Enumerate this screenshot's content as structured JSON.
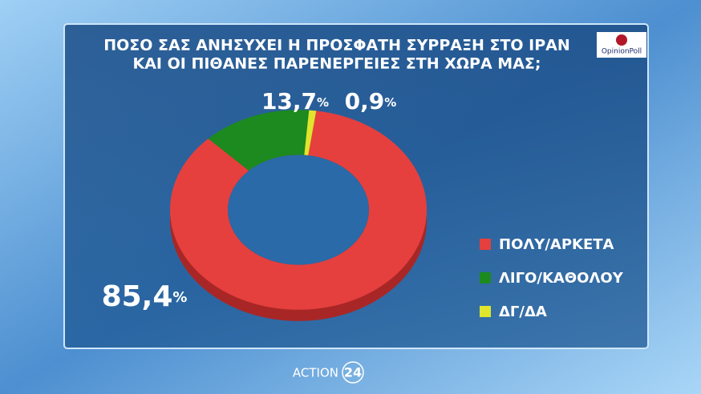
{
  "chart_data": {
    "type": "pie",
    "title": [
      "ΠΟΣΟ ΣΑΣ ΑΝΗΣΥΧΕΙ Η ΠΡΟΣΦΑΤΗ ΣΥΡΡΑΞΗ ΣΤΟ ΙΡΑΝ",
      "ΚΑΙ ΟΙ ΠΙΘΑΝΕΣ ΠΑΡΕΝΕΡΓΕΙΕΣ ΣΤΗ ΧΩΡΑ ΜΑΣ;"
    ],
    "categories": [
      "ΠΟΛΥ/ΑΡΚΕΤΑ",
      "ΛΙΓΟ/ΚΑΘΟΛΟΥ",
      "ΔΓ/ΔΑ"
    ],
    "values": [
      85.4,
      13.7,
      0.9
    ],
    "value_labels": [
      "85,4%",
      "13,7%",
      "0,9%"
    ],
    "colors": [
      "#e5403e",
      "#1c8a1e",
      "#dfe52c"
    ],
    "donut": true
  },
  "branding": {
    "pollster": "OpinionPoll",
    "channel": "ACTION",
    "channel_number": "24"
  }
}
